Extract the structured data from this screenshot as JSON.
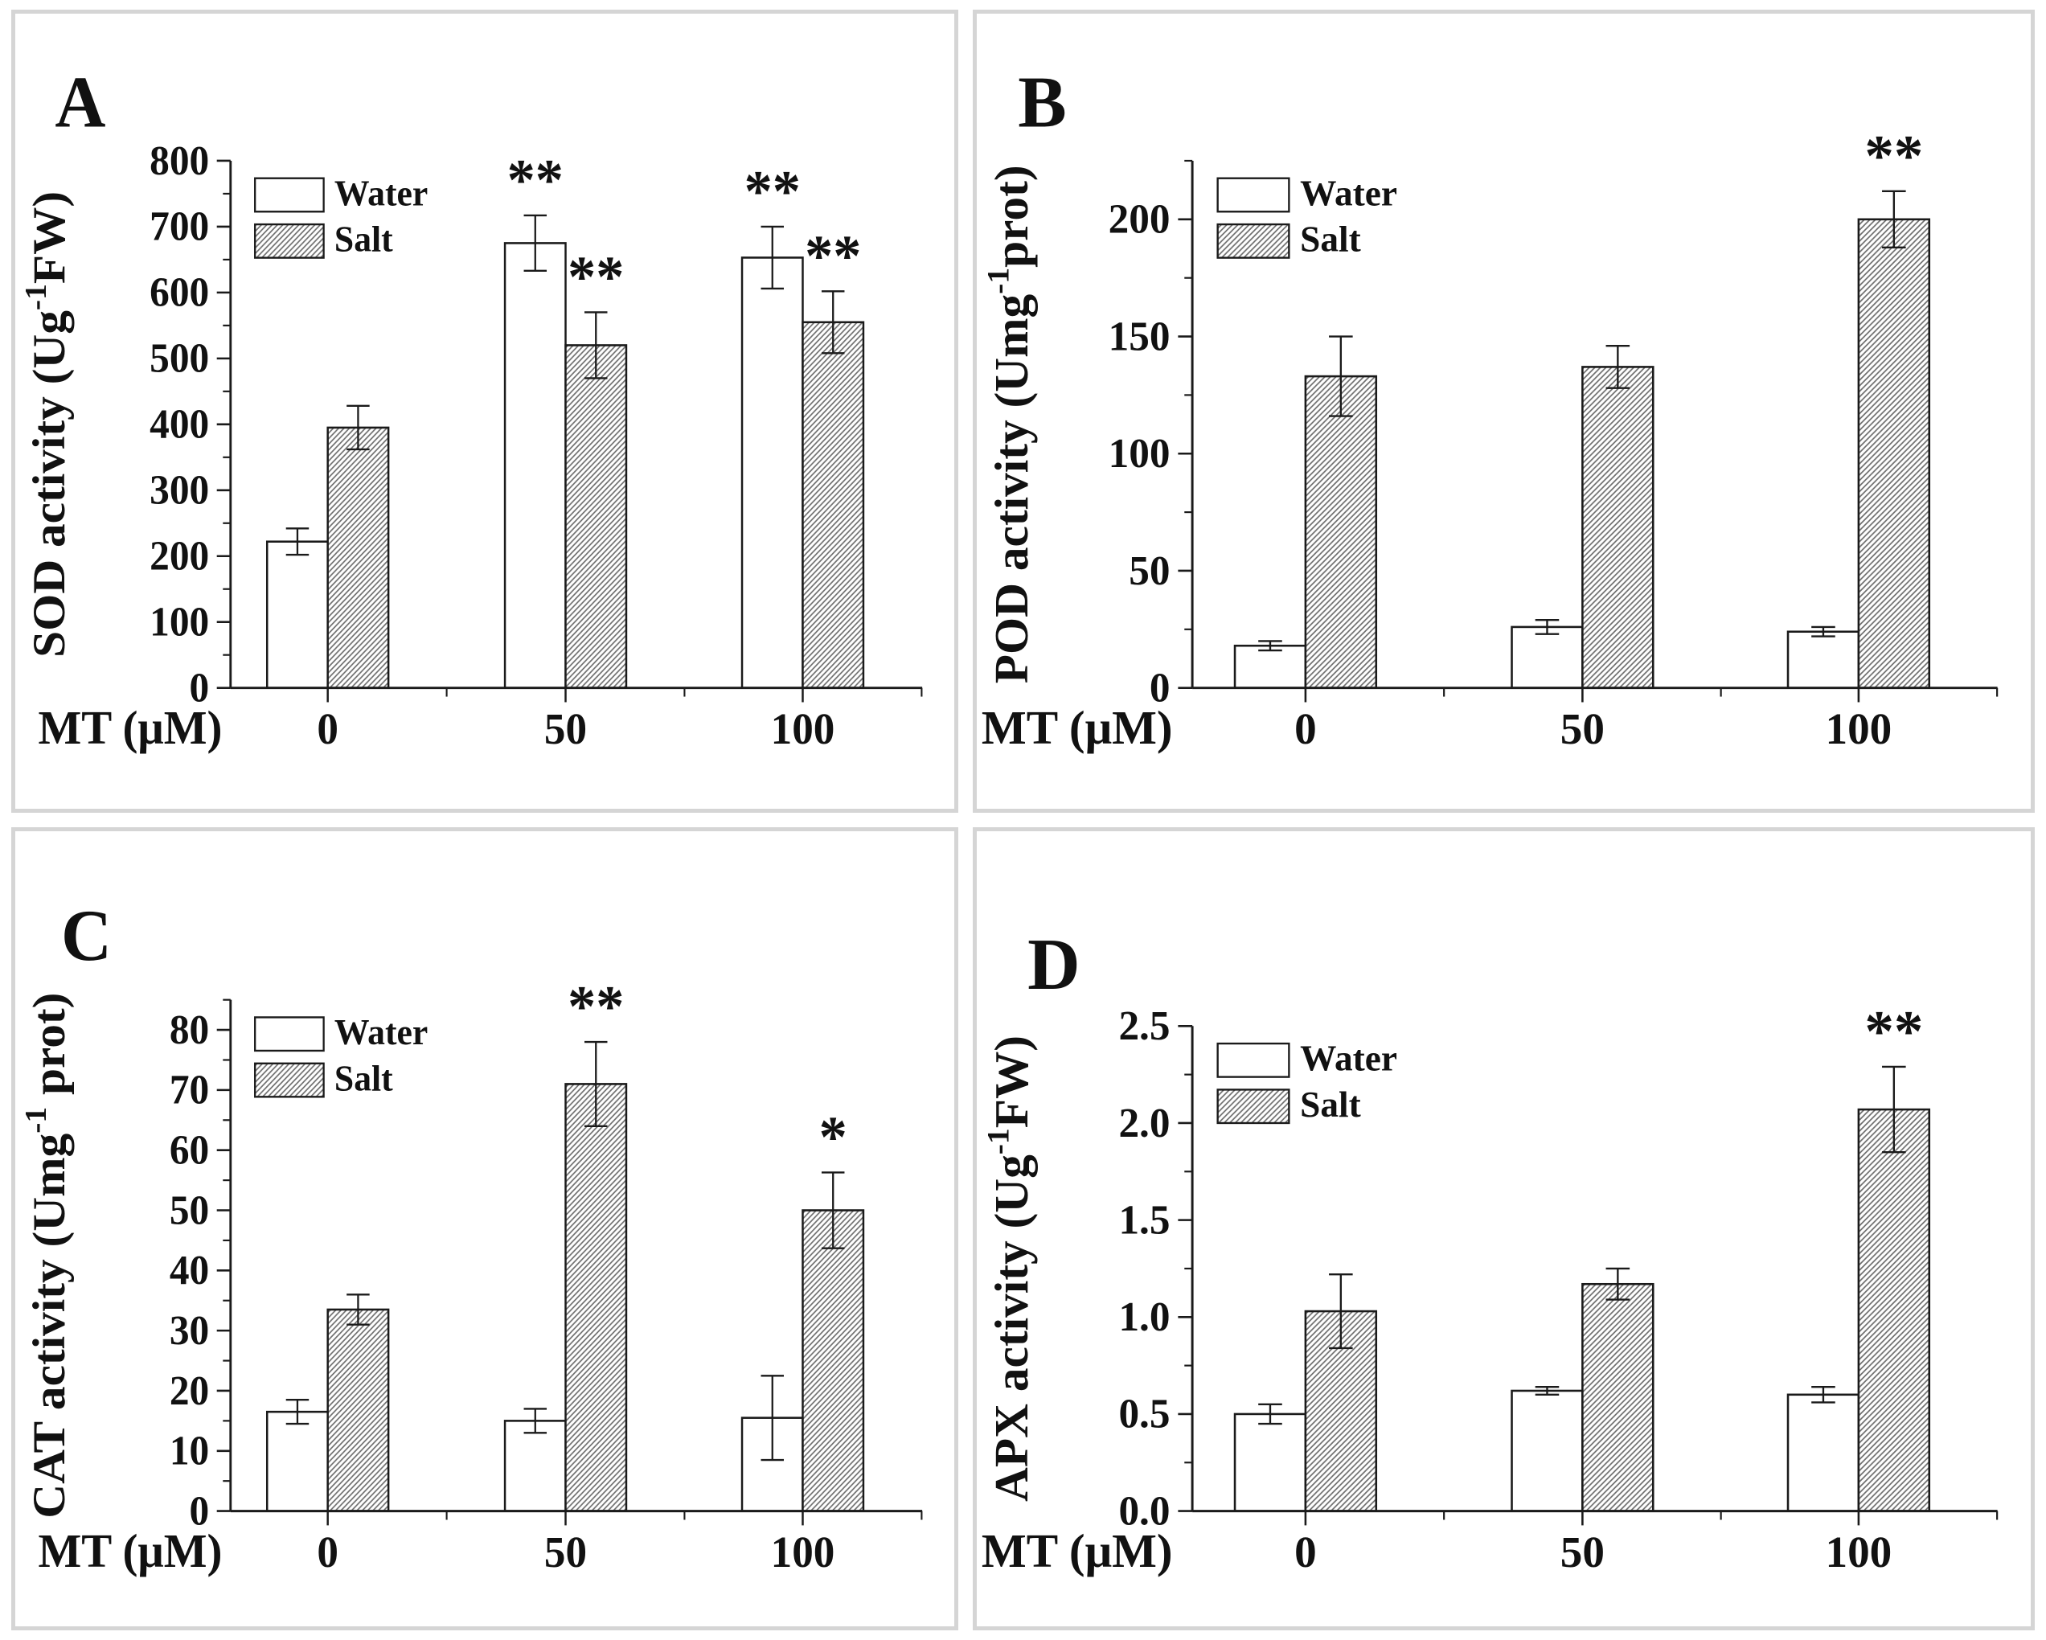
{
  "figure": {
    "background": "#ffffff",
    "frame_color": "#d5d5d5",
    "axis_color": "#1a1a1a",
    "hatch_color": "#6e6e6e",
    "water_fill": "#ffffff",
    "x_axis_label": "MT (μM)",
    "legend_labels": [
      "Water",
      "Salt"
    ]
  },
  "chart_data": [
    {
      "type": "bar",
      "panel_label": "A",
      "title": "SOD activity",
      "ylabel_plain": "SOD activity (Ug-1FW)",
      "ylabel_parts": [
        {
          "t": "SOD activity (Ug"
        },
        {
          "t": "-1",
          "sup": true
        },
        {
          "t": "FW)"
        }
      ],
      "xlabel": "MT (μM)",
      "categories": [
        "0",
        "50",
        "100"
      ],
      "series": [
        {
          "name": "Water",
          "style": "white",
          "values": [
            222,
            675,
            653
          ],
          "errors": [
            20,
            42,
            47
          ],
          "sig": [
            "",
            "**",
            "**"
          ]
        },
        {
          "name": "Salt",
          "style": "hatched",
          "values": [
            395,
            520,
            555
          ],
          "errors": [
            33,
            50,
            47
          ],
          "sig": [
            "",
            "**",
            "**"
          ]
        }
      ],
      "ylim": [
        0,
        800
      ],
      "ymajor": 100,
      "yminor": 50,
      "ytick_labels": [
        "0",
        "100",
        "200",
        "300",
        "400",
        "500",
        "600",
        "700",
        "800"
      ],
      "legend_position": "top-left",
      "grid": false
    },
    {
      "type": "bar",
      "panel_label": "B",
      "title": "POD activity",
      "ylabel_plain": "POD activity (Umg-1prot)",
      "ylabel_parts": [
        {
          "t": "POD activity (Umg"
        },
        {
          "t": "-1",
          "sup": true
        },
        {
          "t": "prot)"
        }
      ],
      "xlabel": "MT (μM)",
      "categories": [
        "0",
        "50",
        "100"
      ],
      "series": [
        {
          "name": "Water",
          "style": "white",
          "values": [
            18,
            26,
            24
          ],
          "errors": [
            2,
            3,
            2
          ],
          "sig": [
            "",
            "",
            ""
          ]
        },
        {
          "name": "Salt",
          "style": "hatched",
          "values": [
            133,
            137,
            200
          ],
          "errors": [
            17,
            9,
            12
          ],
          "sig": [
            "",
            "",
            "**"
          ]
        }
      ],
      "ylim": [
        0,
        225
      ],
      "ymajor": 50,
      "yminor": 25,
      "ytick_labels": [
        "0",
        "50",
        "100",
        "150",
        "200"
      ],
      "legend_position": "top-left",
      "grid": false
    },
    {
      "type": "bar",
      "panel_label": "C",
      "title": "CAT activity",
      "ylabel_plain": "CAT activity (Umg-1 prot)",
      "ylabel_parts": [
        {
          "t": "CAT activity (Umg"
        },
        {
          "t": "-1",
          "sup": true
        },
        {
          "t": " prot)"
        }
      ],
      "xlabel": "MT (μM)",
      "categories": [
        "0",
        "50",
        "100"
      ],
      "series": [
        {
          "name": "Water",
          "style": "white",
          "values": [
            16.5,
            15,
            15.5
          ],
          "errors": [
            2,
            2,
            7
          ],
          "sig": [
            "",
            "",
            ""
          ]
        },
        {
          "name": "Salt",
          "style": "hatched",
          "values": [
            33.5,
            71,
            50
          ],
          "errors": [
            2.5,
            7,
            6.3
          ],
          "sig": [
            "",
            "**",
            "*"
          ]
        }
      ],
      "ylim": [
        0,
        85
      ],
      "ymajor": 10,
      "yminor": 5,
      "ytick_labels": [
        "0",
        "10",
        "20",
        "30",
        "40",
        "50",
        "60",
        "70",
        "80"
      ],
      "legend_position": "top-left",
      "grid": false
    },
    {
      "type": "bar",
      "panel_label": "D",
      "title": "APX activity",
      "ylabel_plain": "APX activity (Ug-1FW)",
      "ylabel_parts": [
        {
          "t": "APX activity (Ug"
        },
        {
          "t": "-1",
          "sup": true
        },
        {
          "t": "FW)"
        }
      ],
      "xlabel": "MT (μM)",
      "categories": [
        "0",
        "50",
        "100"
      ],
      "series": [
        {
          "name": "Water",
          "style": "white",
          "values": [
            0.5,
            0.62,
            0.6
          ],
          "errors": [
            0.05,
            0.02,
            0.04
          ],
          "sig": [
            "",
            "",
            ""
          ]
        },
        {
          "name": "Salt",
          "style": "hatched",
          "values": [
            1.03,
            1.17,
            2.07
          ],
          "errors": [
            0.19,
            0.08,
            0.22
          ],
          "sig": [
            "",
            "",
            "**"
          ]
        }
      ],
      "ylim": [
        0,
        2.5
      ],
      "ymajor": 0.5,
      "yminor": 0.25,
      "ytick_labels": [
        "0.0",
        "0.5",
        "1.0",
        "1.5",
        "2.0",
        "2.5"
      ],
      "legend_position": "top-left",
      "grid": false
    }
  ]
}
